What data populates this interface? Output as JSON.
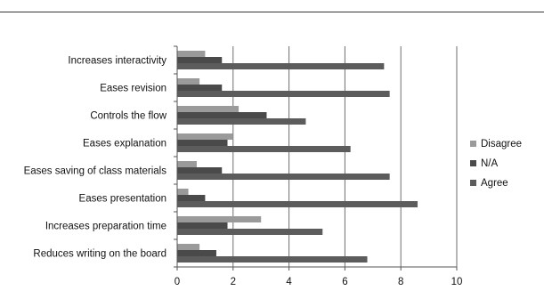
{
  "chart_data": {
    "type": "bar",
    "orientation": "horizontal",
    "title": "",
    "xlabel": "",
    "ylabel": "",
    "xlim": [
      0,
      10
    ],
    "x_ticks": [
      0,
      2,
      4,
      6,
      8,
      10
    ],
    "x_tick_labels": [
      "0",
      "2",
      "4",
      "6",
      "8",
      "10"
    ],
    "grid": "vertical major gridlines",
    "legend_position": "right",
    "categories": [
      "Increases interactivity",
      "Eases revision",
      "Controls the flow",
      "Eases explanation",
      "Eases saving of class materials",
      "Eases presentation",
      "Increases preparation time",
      "Reduces writing on the board"
    ],
    "series": [
      {
        "name": "Disagree",
        "color": "#9a9a9a",
        "values": [
          1.0,
          0.8,
          2.2,
          2.0,
          0.7,
          0.4,
          3.0,
          0.8
        ]
      },
      {
        "name": "N/A",
        "color": "#4a4a4a",
        "values": [
          1.6,
          1.6,
          3.2,
          1.8,
          1.6,
          1.0,
          1.8,
          1.4
        ]
      },
      {
        "name": "Agree",
        "color": "#5c5c5c",
        "values": [
          7.4,
          7.6,
          4.6,
          6.2,
          7.6,
          8.6,
          5.2,
          6.8
        ]
      }
    ]
  }
}
